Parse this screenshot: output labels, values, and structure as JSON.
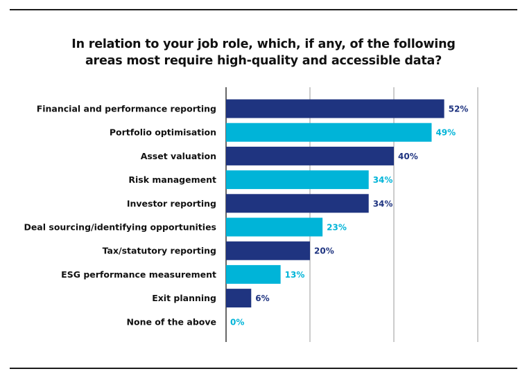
{
  "chart_data": {
    "type": "bar",
    "orientation": "horizontal",
    "title_lines": [
      "In relation to your job role, which, if any, of the following",
      "areas most require high-quality and accessible data?"
    ],
    "categories": [
      "Financial and performance reporting",
      "Portfolio optimisation",
      "Asset valuation",
      "Risk management",
      "Investor reporting",
      "Deal sourcing/identifying opportunities",
      "Tax/statutory reporting",
      "ESG performance measurement",
      "Exit planning",
      "None of the above"
    ],
    "values": [
      52,
      49,
      40,
      34,
      34,
      23,
      20,
      13,
      6,
      0
    ],
    "value_labels": [
      "52%",
      "49%",
      "40%",
      "34%",
      "34%",
      "23%",
      "20%",
      "13%",
      "6%",
      "0%"
    ],
    "xlim": [
      0,
      60
    ],
    "gridlines_at": [
      0,
      20,
      40,
      60
    ],
    "grid": true,
    "colors": [
      "#1f3480",
      "#00b4d8"
    ]
  }
}
